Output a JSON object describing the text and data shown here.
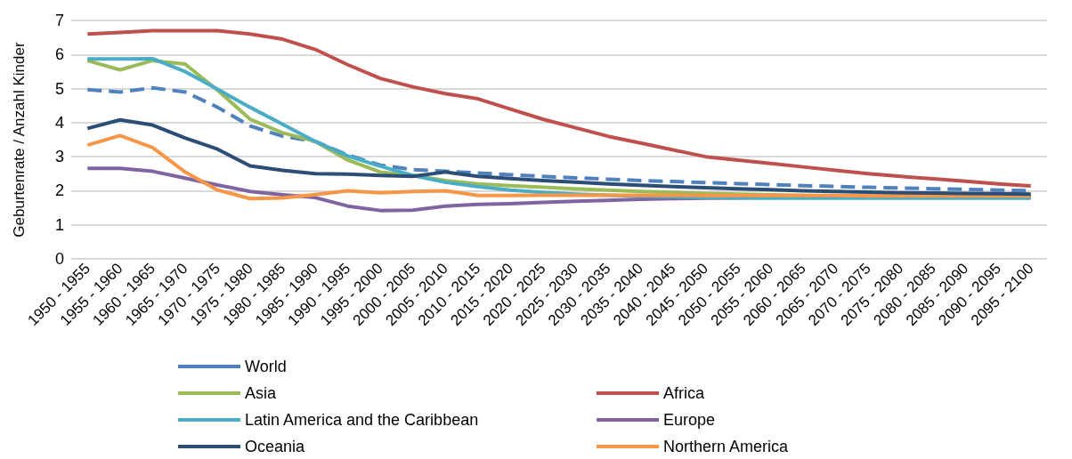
{
  "chart_data": {
    "type": "line",
    "ylabel": "Geburtenrate / Anzahl Kinder",
    "categories": [
      "1950 - 1955",
      "1955 - 1960",
      "1960 - 1965",
      "1965 - 1970",
      "1970 - 1975",
      "1975 - 1980",
      "1980 - 1985",
      "1985 - 1990",
      "1990 - 1995",
      "1995 - 2000",
      "2000 - 2005",
      "2005 - 2010",
      "2010 - 2015",
      "2015 - 2020",
      "2020 - 2025",
      "2025 - 2030",
      "2030 - 2035",
      "2035 - 2040",
      "2040 - 2045",
      "2045 - 2050",
      "2050 - 2055",
      "2055 - 2060",
      "2060 - 2065",
      "2065 - 2070",
      "2070 - 2075",
      "2075 - 2080",
      "2080 - 2085",
      "2085 - 2090",
      "2090 - 2095",
      "2095 - 2100"
    ],
    "ylim": [
      0,
      7
    ],
    "yticks": [
      0,
      1,
      2,
      3,
      4,
      5,
      6,
      7
    ],
    "grid": "y",
    "legend": "bottom",
    "marker": "none",
    "series": [
      {
        "name": "World",
        "color": "#4f81bd",
        "line_style": "dashed",
        "values": [
          4.97,
          4.9,
          5.02,
          4.9,
          4.45,
          3.9,
          3.6,
          3.45,
          3.05,
          2.75,
          2.62,
          2.57,
          2.52,
          2.47,
          2.42,
          2.38,
          2.34,
          2.3,
          2.27,
          2.24,
          2.21,
          2.18,
          2.15,
          2.13,
          2.1,
          2.08,
          2.06,
          2.04,
          2.02,
          2.0
        ]
      },
      {
        "name": "Africa",
        "color": "#c0504d",
        "values": [
          6.6,
          6.65,
          6.7,
          6.7,
          6.7,
          6.6,
          6.45,
          6.15,
          5.7,
          5.3,
          5.05,
          4.85,
          4.7,
          4.4,
          4.1,
          3.85,
          3.6,
          3.4,
          3.2,
          3.0,
          2.9,
          2.8,
          2.7,
          2.6,
          2.5,
          2.42,
          2.35,
          2.28,
          2.2,
          2.14
        ]
      },
      {
        "name": "Asia",
        "color": "#9bbb59",
        "values": [
          5.82,
          5.55,
          5.82,
          5.72,
          4.95,
          4.1,
          3.7,
          3.45,
          2.9,
          2.55,
          2.45,
          2.3,
          2.2,
          2.15,
          2.1,
          2.06,
          2.02,
          1.98,
          1.95,
          1.92,
          1.9,
          1.88,
          1.86,
          1.85,
          1.84,
          1.83,
          null,
          null,
          null,
          null
        ]
      },
      {
        "name": "Europe",
        "color": "#8064a2",
        "values": [
          2.66,
          2.66,
          2.57,
          2.37,
          2.17,
          1.98,
          1.88,
          1.8,
          1.55,
          1.42,
          1.43,
          1.55,
          1.6,
          1.62,
          1.66,
          1.69,
          1.72,
          1.75,
          1.77,
          1.78,
          1.79,
          1.8,
          1.8,
          1.81,
          1.81,
          1.82,
          1.82,
          1.82,
          1.83,
          1.83
        ]
      },
      {
        "name": "Latin America and the Caribbean",
        "color": "#4bacc6",
        "values": [
          5.87,
          5.87,
          5.88,
          5.5,
          4.98,
          4.45,
          3.95,
          3.45,
          3.02,
          2.72,
          2.45,
          2.25,
          2.12,
          2.02,
          1.95,
          1.9,
          1.87,
          1.84,
          1.82,
          1.8,
          1.79,
          1.78,
          1.78,
          1.78,
          1.78,
          1.78,
          1.78,
          1.78,
          1.78,
          1.78
        ]
      },
      {
        "name": "Northern America",
        "color": "#f79646",
        "values": [
          3.34,
          3.62,
          3.27,
          2.55,
          2.02,
          1.77,
          1.79,
          1.89,
          2.0,
          1.94,
          1.98,
          2.0,
          1.86,
          1.86,
          1.87,
          1.87,
          1.87,
          1.87,
          1.87,
          1.86,
          1.86,
          1.86,
          1.86,
          1.86,
          1.85,
          1.85,
          1.85,
          1.85,
          1.85,
          1.85
        ]
      },
      {
        "name": "Oceania",
        "color": "#2c4d75",
        "values": [
          3.83,
          4.08,
          3.93,
          3.55,
          3.22,
          2.73,
          2.6,
          2.5,
          2.49,
          2.45,
          2.42,
          2.55,
          2.42,
          2.36,
          2.3,
          2.25,
          2.2,
          2.16,
          2.12,
          2.09,
          2.06,
          2.03,
          2.0,
          1.98,
          1.96,
          1.94,
          1.93,
          1.92,
          1.91,
          1.9
        ]
      }
    ]
  }
}
